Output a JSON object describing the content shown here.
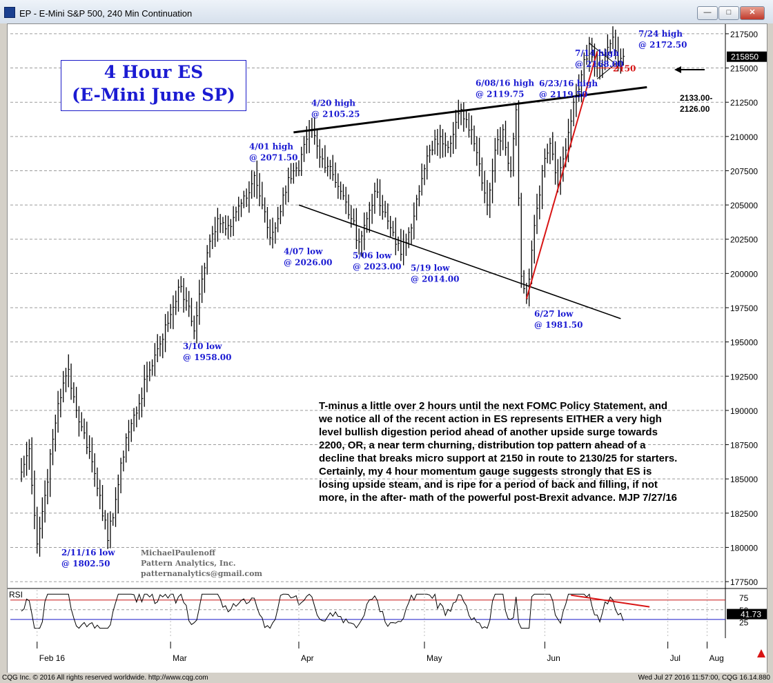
{
  "window": {
    "title": "EP - E-Mini S&P 500, 240 Min Continuation",
    "min_label": "—",
    "max_label": "□",
    "close_label": "✕"
  },
  "chart_data": {
    "type": "line",
    "title": "4 Hour ES",
    "subtitle": "(E-Mini June SP)",
    "price_axis": {
      "range": [
        1770,
        2180
      ],
      "ticks": [
        "217500",
        "215000",
        "212500",
        "210000",
        "207500",
        "205000",
        "202500",
        "200000",
        "197500",
        "195000",
        "192500",
        "190000",
        "187500",
        "185000",
        "182500",
        "180000",
        "177500"
      ],
      "last_price": "215850"
    },
    "time_axis": {
      "labels": [
        "Feb 16",
        "Mar",
        "Apr",
        "May",
        "Jun",
        "Jul",
        "Aug"
      ]
    },
    "price_anchors": [
      {
        "x": 0,
        "y": 1855
      },
      {
        "x": 3,
        "y": 1872
      },
      {
        "x": 6,
        "y": 1802.5
      },
      {
        "x": 9,
        "y": 1838
      },
      {
        "x": 14,
        "y": 1905
      },
      {
        "x": 18,
        "y": 1930
      },
      {
        "x": 21,
        "y": 1900
      },
      {
        "x": 23,
        "y": 1888
      },
      {
        "x": 26,
        "y": 1870
      },
      {
        "x": 30,
        "y": 1838
      },
      {
        "x": 33,
        "y": 1805
      },
      {
        "x": 36,
        "y": 1835
      },
      {
        "x": 40,
        "y": 1880
      },
      {
        "x": 45,
        "y": 1905
      },
      {
        "x": 48,
        "y": 1925
      },
      {
        "x": 52,
        "y": 1945
      },
      {
        "x": 57,
        "y": 1970
      },
      {
        "x": 60,
        "y": 1990
      },
      {
        "x": 63,
        "y": 1980
      },
      {
        "x": 66,
        "y": 1958
      },
      {
        "x": 68,
        "y": 1985
      },
      {
        "x": 71,
        "y": 2015
      },
      {
        "x": 75,
        "y": 2040
      },
      {
        "x": 79,
        "y": 2035
      },
      {
        "x": 82,
        "y": 2045
      },
      {
        "x": 86,
        "y": 2055
      },
      {
        "x": 89,
        "y": 2071.5
      },
      {
        "x": 92,
        "y": 2050
      },
      {
        "x": 95,
        "y": 2026
      },
      {
        "x": 98,
        "y": 2040
      },
      {
        "x": 102,
        "y": 2070
      },
      {
        "x": 106,
        "y": 2075
      },
      {
        "x": 109,
        "y": 2098
      },
      {
        "x": 111,
        "y": 2105.25
      },
      {
        "x": 114,
        "y": 2085
      },
      {
        "x": 118,
        "y": 2078
      },
      {
        "x": 122,
        "y": 2060
      },
      {
        "x": 126,
        "y": 2040
      },
      {
        "x": 129,
        "y": 2023
      },
      {
        "x": 132,
        "y": 2040
      },
      {
        "x": 135,
        "y": 2060
      },
      {
        "x": 138,
        "y": 2045
      },
      {
        "x": 142,
        "y": 2030
      },
      {
        "x": 145,
        "y": 2014
      },
      {
        "x": 148,
        "y": 2030
      },
      {
        "x": 152,
        "y": 2060
      },
      {
        "x": 156,
        "y": 2090
      },
      {
        "x": 160,
        "y": 2100
      },
      {
        "x": 164,
        "y": 2095
      },
      {
        "x": 168,
        "y": 2119.75
      },
      {
        "x": 172,
        "y": 2105
      },
      {
        "x": 175,
        "y": 2080
      },
      {
        "x": 178,
        "y": 2050
      },
      {
        "x": 181,
        "y": 2090
      },
      {
        "x": 184,
        "y": 2105
      },
      {
        "x": 187,
        "y": 2075
      },
      {
        "x": 189,
        "y": 2119.5
      },
      {
        "x": 191,
        "y": 1998
      },
      {
        "x": 193,
        "y": 1981.5
      },
      {
        "x": 196,
        "y": 2035
      },
      {
        "x": 199,
        "y": 2075
      },
      {
        "x": 202,
        "y": 2095
      },
      {
        "x": 205,
        "y": 2065
      },
      {
        "x": 208,
        "y": 2090
      },
      {
        "x": 211,
        "y": 2125
      },
      {
        "x": 214,
        "y": 2145
      },
      {
        "x": 217,
        "y": 2168
      },
      {
        "x": 220,
        "y": 2150
      },
      {
        "x": 223,
        "y": 2160
      },
      {
        "x": 226,
        "y": 2172.5
      },
      {
        "x": 228,
        "y": 2155
      },
      {
        "x": 230,
        "y": 2158.5
      }
    ],
    "rsi": {
      "label": "RSI",
      "ticks": [
        "75",
        "50",
        "25"
      ],
      "upper": 70,
      "lower": 30,
      "last": "41.73"
    },
    "annotations": [
      {
        "l1": "2/11/16 low",
        "l2": "@ 1802.50"
      },
      {
        "l1": "3/10 low",
        "l2": "@ 1958.00"
      },
      {
        "l1": "4/01 high",
        "l2": "@ 2071.50"
      },
      {
        "l1": "4/07 low",
        "l2": "@ 2026.00"
      },
      {
        "l1": "4/20 high",
        "l2": "@ 2105.25"
      },
      {
        "l1": "5/06 low",
        "l2": "@ 2023.00"
      },
      {
        "l1": "5/19 low",
        "l2": "@ 2014.00"
      },
      {
        "l1": "6/08/16 high",
        "l2": "@ 2119.75"
      },
      {
        "l1": "6/23/16 high",
        "l2": "@ 2119.50"
      },
      {
        "l1": "6/27 low",
        "l2": "@ 1981.50"
      },
      {
        "l1": "7/14 high",
        "l2": "@ 2168.00"
      },
      {
        "l1": "7/24 high",
        "l2": "@ 2172.50"
      }
    ],
    "level_label": "2150",
    "resistance_label": [
      "2133.00-",
      "2126.00"
    ],
    "colors": {
      "annotation": "#1b1bd2",
      "trend_red": "#d81414",
      "level_red": "#d81414"
    }
  },
  "commentary": "T-minus a little over 2 hours until the next FOMC Policy Statement, and we notice all of the recent action in ES represents EITHER a very high level bullish digestion period ahead of another upside surge towards 2200, OR, a near term churning, distribution top pattern ahead of a decline that breaks micro support at 2150 in route to 2130/25 for starters. Certainly, my 4 hour momentum gauge suggests strongly that ES is losing upside steam, and is ripe for a period of back and filling, if not more, in the after- math of the powerful post-Brexit advance.  MJP 7/27/16",
  "credit": {
    "name": "MichaelPaulenoff",
    "company": "Pattern Analytics, Inc.",
    "email": "patternanalytics@gmail.com"
  },
  "status": {
    "left": "CQG Inc. © 2016 All rights reserved worldwide. http://www.cqg.com",
    "right": "Wed Jul 27 2016 11:57:00, CQG 16.14.880"
  }
}
